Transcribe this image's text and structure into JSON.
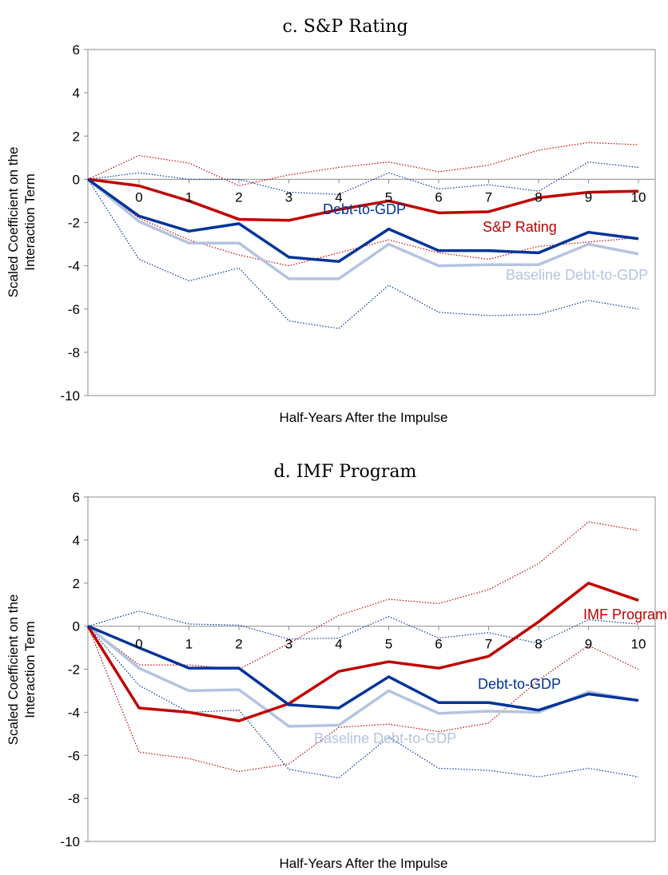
{
  "chart_data": [
    {
      "type": "line",
      "title": "c. S&P Rating",
      "xlabel": "Half-Years After the Impulse",
      "ylabel": "Scaled Coefficient on the Interaction Term",
      "ylim": [
        -10,
        6
      ],
      "yticks": [
        6,
        4,
        2,
        0,
        -2,
        -4,
        -6,
        -8,
        -10
      ],
      "xticks": [
        0,
        1,
        2,
        3,
        4,
        5,
        6,
        7,
        8,
        9,
        10
      ],
      "x": [
        "start",
        0,
        1,
        2,
        3,
        4,
        5,
        6,
        7,
        8,
        9,
        10
      ],
      "series": [
        {
          "name": "S&P Rating",
          "role": "main",
          "color": "#c00000",
          "values": [
            0,
            -0.3,
            -1.0,
            -1.85,
            -1.9,
            -1.4,
            -1.0,
            -1.55,
            -1.5,
            -0.85,
            -0.6,
            -0.55
          ]
        },
        {
          "name": "",
          "role": "band-upper",
          "color": "#c00000",
          "values": [
            0,
            1.1,
            0.75,
            -0.3,
            0.2,
            0.55,
            0.8,
            0.35,
            0.65,
            1.35,
            1.7,
            1.6
          ]
        },
        {
          "name": "",
          "role": "band-lower",
          "color": "#c00000",
          "values": [
            0,
            -1.8,
            -2.8,
            -3.5,
            -4.0,
            -3.4,
            -2.8,
            -3.4,
            -3.7,
            -3.1,
            -2.9,
            -2.7
          ]
        },
        {
          "name": "Debt-to-GDP",
          "role": "main",
          "color": "#003399",
          "values": [
            0,
            -1.7,
            -2.4,
            -2.05,
            -3.6,
            -3.8,
            -2.3,
            -3.3,
            -3.3,
            -3.4,
            -2.45,
            -2.75
          ]
        },
        {
          "name": "",
          "role": "band-upper",
          "color": "#003399",
          "values": [
            0,
            0.3,
            0.0,
            0.0,
            -0.6,
            -0.7,
            0.3,
            -0.45,
            -0.25,
            -0.55,
            0.8,
            0.55
          ]
        },
        {
          "name": "",
          "role": "band-lower",
          "color": "#003399",
          "values": [
            0,
            -3.7,
            -4.7,
            -4.1,
            -6.55,
            -6.9,
            -4.9,
            -6.15,
            -6.3,
            -6.25,
            -5.6,
            -6.0
          ]
        },
        {
          "name": "Baseline Debt-to-GDP",
          "role": "baseline",
          "color": "#b4c3e0",
          "values": [
            0,
            -1.95,
            -2.95,
            -2.95,
            -4.6,
            -4.6,
            -3.0,
            -4.0,
            -3.95,
            -3.95,
            -3.0,
            -3.45
          ]
        }
      ],
      "labels": [
        {
          "text": "S&P Rating",
          "color": "#c00000"
        },
        {
          "text": "Debt-to-GDP",
          "color": "#003399"
        },
        {
          "text": "Baseline Debt-to-GDP",
          "color": "#b4c3e0"
        }
      ]
    },
    {
      "type": "line",
      "title": "d.  IMF Program",
      "xlabel": "Half-Years After the Impulse",
      "ylabel": "Scaled Coefficient on the Interaction Term",
      "ylim": [
        -10,
        6
      ],
      "yticks": [
        6,
        4,
        2,
        0,
        -2,
        -4,
        -6,
        -8,
        -10
      ],
      "xticks": [
        0,
        1,
        2,
        3,
        4,
        5,
        6,
        7,
        8,
        9,
        10
      ],
      "x": [
        "start",
        0,
        1,
        2,
        3,
        4,
        5,
        6,
        7,
        8,
        9,
        10
      ],
      "series": [
        {
          "name": "IMF Program",
          "role": "main",
          "color": "#c00000",
          "values": [
            0,
            -3.8,
            -4.0,
            -4.4,
            -3.6,
            -2.1,
            -1.65,
            -1.95,
            -1.4,
            0.2,
            2.0,
            1.2
          ]
        },
        {
          "name": "",
          "role": "band-upper",
          "color": "#c00000",
          "values": [
            0,
            -1.8,
            -1.8,
            -2.0,
            -0.8,
            0.5,
            1.25,
            1.05,
            1.7,
            2.9,
            4.85,
            4.45
          ]
        },
        {
          "name": "",
          "role": "band-lower",
          "color": "#c00000",
          "values": [
            0,
            -5.85,
            -6.15,
            -6.75,
            -6.4,
            -4.7,
            -4.55,
            -4.9,
            -4.5,
            -2.5,
            -0.9,
            -2.0
          ]
        },
        {
          "name": "Debt-to-GDP",
          "role": "main",
          "color": "#003399",
          "values": [
            0,
            -1.0,
            -1.95,
            -1.95,
            -3.65,
            -3.8,
            -2.35,
            -3.55,
            -3.55,
            -3.9,
            -3.15,
            -3.45
          ]
        },
        {
          "name": "",
          "role": "band-upper",
          "color": "#003399",
          "values": [
            0,
            0.7,
            0.1,
            0.05,
            -0.6,
            -0.55,
            0.45,
            -0.55,
            -0.3,
            -0.8,
            0.3,
            0.1
          ]
        },
        {
          "name": "",
          "role": "band-lower",
          "color": "#003399",
          "values": [
            0,
            -2.75,
            -4.0,
            -3.9,
            -6.65,
            -7.05,
            -5.15,
            -6.6,
            -6.7,
            -7.0,
            -6.6,
            -7.0
          ]
        },
        {
          "name": "Baseline Debt-to-GDP",
          "role": "baseline",
          "color": "#b4c3e0",
          "values": [
            0,
            -1.95,
            -3.0,
            -2.95,
            -4.65,
            -4.6,
            -3.0,
            -4.05,
            -3.95,
            -4.0,
            -3.05,
            -3.45
          ]
        }
      ],
      "labels": [
        {
          "text": "IMF Program",
          "color": "#c00000"
        },
        {
          "text": "Debt-to-GDP",
          "color": "#003399"
        },
        {
          "text": "Baseline Debt-to-GDP",
          "color": "#b4c3e0"
        }
      ]
    }
  ]
}
